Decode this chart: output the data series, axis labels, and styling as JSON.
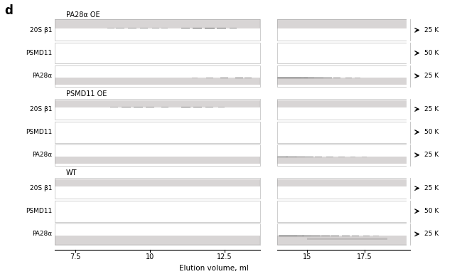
{
  "title_letter": "d",
  "sections": [
    {
      "label": "PA28α OE",
      "rows": [
        "20S β1",
        "PSMD11",
        "PA28α"
      ]
    },
    {
      "label": "PSMD11 OE",
      "rows": [
        "20S β1",
        "PSMD11",
        "PA28α"
      ]
    },
    {
      "label": "WT",
      "rows": [
        "20S β1",
        "PSMD11",
        "PA28α"
      ]
    }
  ],
  "x_ticks": [
    7.5,
    10,
    12.5,
    15,
    17.5
  ],
  "x_tick_labels": [
    "7.5",
    "10",
    "12.5",
    "15",
    "17.5"
  ],
  "xlabel": "Elution volume, ml",
  "mw_labels_right": [
    [
      "← 25 K",
      "← 50 K",
      "← 25 K"
    ],
    [
      "← 25 K",
      "← 50 K",
      "← 25 K"
    ],
    [
      "← 25 K",
      "← 50 K",
      "← 25 K"
    ]
  ],
  "panel_bg": "#dddada",
  "gap_color": "#ffffff",
  "fig_bg": "#ffffff"
}
